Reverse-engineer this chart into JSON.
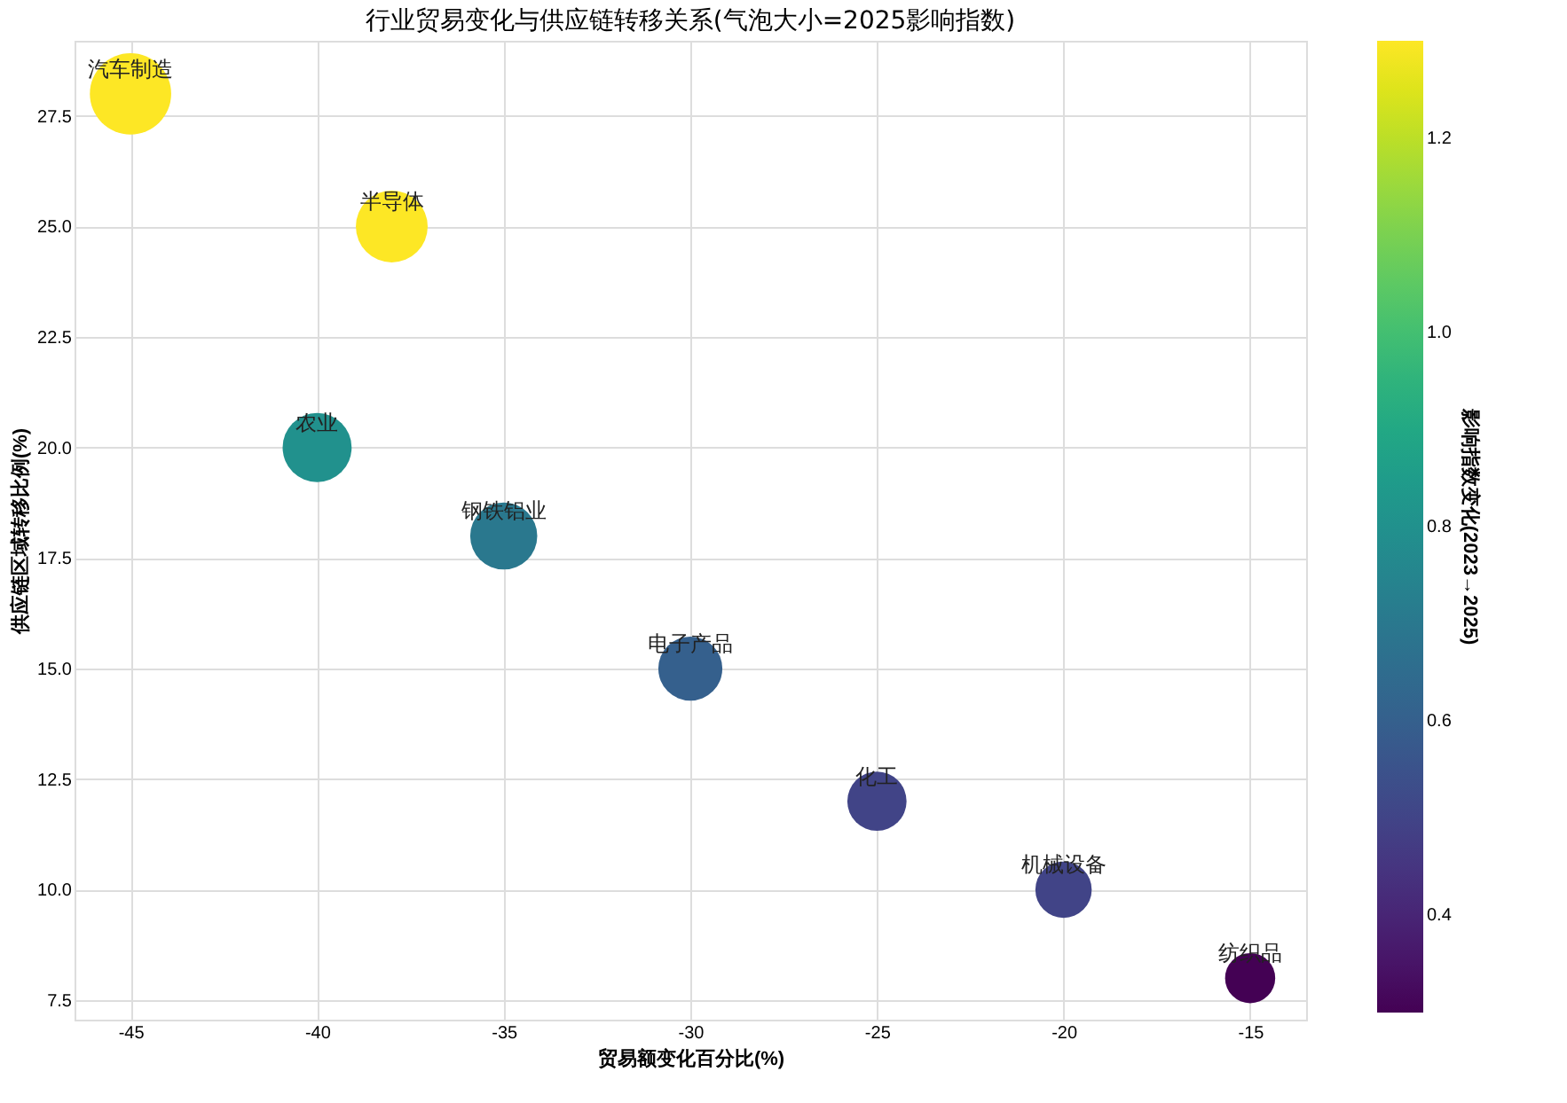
{
  "chart_data": {
    "type": "bubble",
    "title": "行业贸易变化与供应链转移关系(气泡大小=2025影响指数)",
    "xlabel": "贸易额变化百分比(%)",
    "ylabel": "供应链区域转移比例(%)",
    "clabel": "影响指数变化(2023→2025)",
    "xlim": [
      -46.5,
      -13.5
    ],
    "xticks": [
      -45,
      -40,
      -35,
      -30,
      -25,
      -20,
      -15
    ],
    "ylim": [
      7.06,
      29.2
    ],
    "yticks": [
      7.5,
      {
        "value": 10,
        "label": "10.0"
      },
      12.5,
      {
        "value": 15,
        "label": "15.0"
      },
      17.5,
      {
        "value": 20,
        "label": "20.0"
      },
      22.5,
      {
        "value": 25,
        "label": "25.0"
      },
      27.5
    ],
    "clim": [
      0.3,
      1.3
    ],
    "cticks": [
      0.4,
      0.6,
      0.8,
      {
        "value": 1,
        "label": "1.0"
      },
      1.2
    ],
    "grid": true,
    "x": [
      -45,
      -38,
      -40,
      -35,
      -30,
      -25,
      -20,
      -15
    ],
    "values": [
      28,
      25,
      20,
      18,
      15,
      12,
      10,
      8
    ],
    "sizes": [
      1,
      0.78,
      0.72,
      0.68,
      0.62,
      0.53,
      0.48,
      0.38
    ],
    "cvalues": [
      1.3,
      1.3,
      0.8,
      0.7,
      0.6,
      0.5,
      0.5,
      0.3
    ],
    "annotations": [
      {
        "text": "汽车制造",
        "x": -45,
        "y": 28
      },
      {
        "text": "半导体",
        "x": -38,
        "y": 25
      },
      {
        "text": "农业",
        "x": -40,
        "y": 20
      },
      {
        "text": "钢铁铝业",
        "x": -35,
        "y": 18
      },
      {
        "text": "电子产品",
        "x": -30,
        "y": 15
      },
      {
        "text": "化工",
        "x": -25,
        "y": 12
      },
      {
        "text": "机械设备",
        "x": -20,
        "y": 10
      },
      {
        "text": "纺织品",
        "x": -15,
        "y": 8
      }
    ]
  }
}
